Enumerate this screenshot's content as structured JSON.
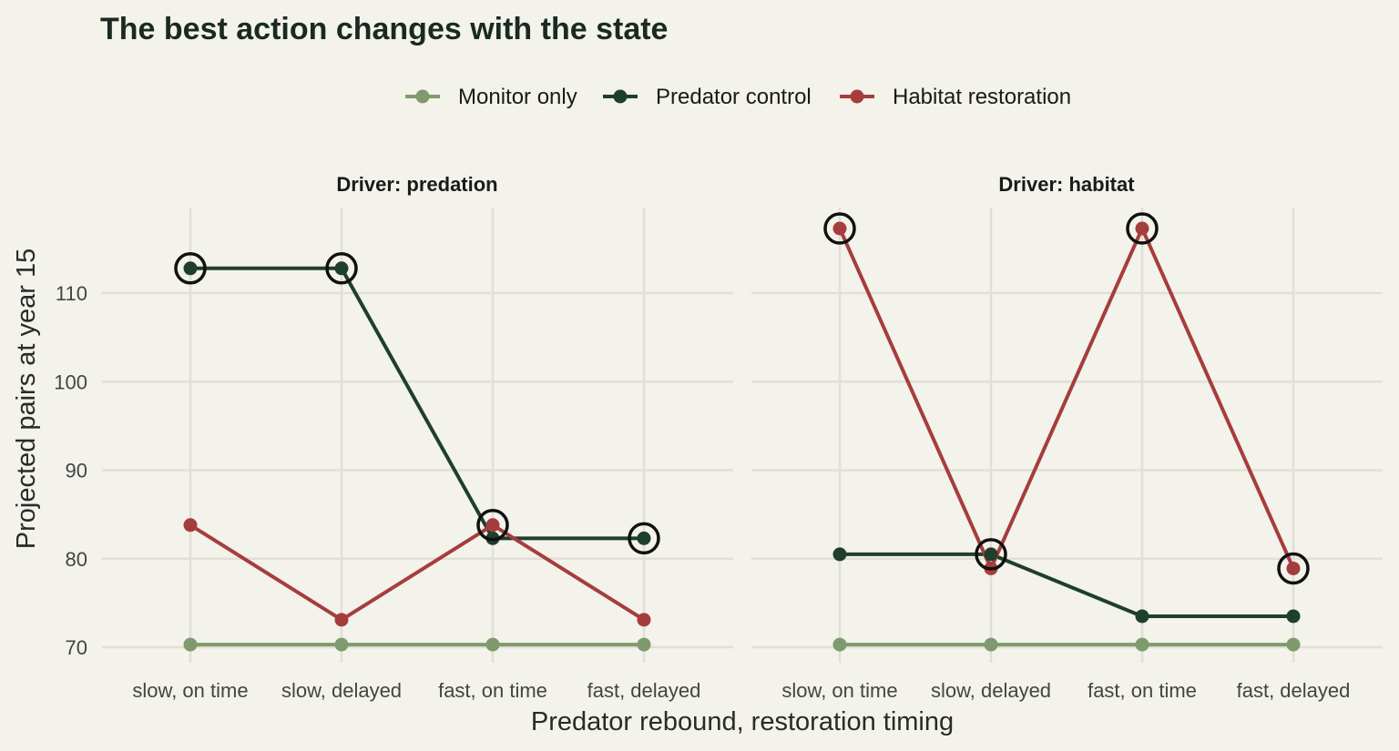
{
  "chart_data": {
    "type": "line",
    "title": "The best action changes with the state",
    "xlabel": "Predator rebound, restoration timing",
    "ylabel": "Projected pairs at year 15",
    "categories": [
      "slow, on time",
      "slow, delayed",
      "fast, on time",
      "fast, delayed"
    ],
    "yticks": [
      70,
      80,
      90,
      100,
      110
    ],
    "ylim": [
      68,
      120
    ],
    "grid": true,
    "legend_position": "top-center",
    "legend": [
      {
        "name": "Monitor only",
        "color": "#7f9a6c"
      },
      {
        "name": "Predator control",
        "color": "#1f3f2d"
      },
      {
        "name": "Habitat restoration",
        "color": "#a63d3d"
      }
    ],
    "panels": [
      {
        "label": "Driver: predation",
        "series": [
          {
            "name": "Monitor only",
            "values": [
              70.3,
              70.3,
              70.3,
              70.3
            ]
          },
          {
            "name": "Predator control",
            "values": [
              112.8,
              112.8,
              82.3,
              82.3
            ]
          },
          {
            "name": "Habitat restoration",
            "values": [
              83.8,
              73.1,
              83.8,
              73.1
            ]
          }
        ],
        "best": [
          {
            "category": 0,
            "series": "Predator control"
          },
          {
            "category": 1,
            "series": "Predator control"
          },
          {
            "category": 2,
            "series": "Habitat restoration"
          },
          {
            "category": 3,
            "series": "Predator control"
          }
        ]
      },
      {
        "label": "Driver: habitat",
        "series": [
          {
            "name": "Monitor only",
            "values": [
              70.3,
              70.3,
              70.3,
              70.3
            ]
          },
          {
            "name": "Predator control",
            "values": [
              80.5,
              80.5,
              73.5,
              73.5
            ]
          },
          {
            "name": "Habitat restoration",
            "values": [
              117.3,
              78.9,
              117.3,
              78.9
            ]
          }
        ],
        "best": [
          {
            "category": 0,
            "series": "Habitat restoration"
          },
          {
            "category": 1,
            "series": "Predator control"
          },
          {
            "category": 2,
            "series": "Habitat restoration"
          },
          {
            "category": 3,
            "series": "Habitat restoration"
          }
        ]
      }
    ]
  }
}
